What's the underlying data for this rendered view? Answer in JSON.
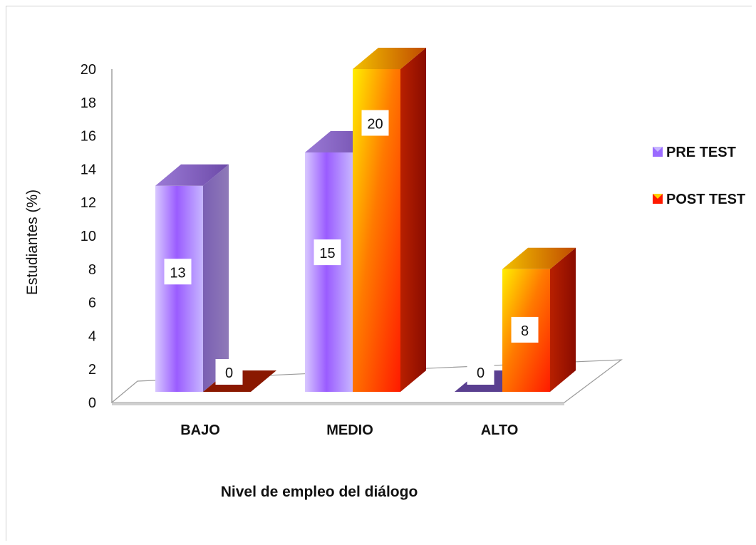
{
  "chart_data": {
    "type": "bar",
    "categories": [
      "BAJO",
      "MEDIO",
      "ALTO"
    ],
    "series": [
      {
        "name": "PRE TEST",
        "values": [
          13,
          15,
          0
        ],
        "color": "#9b6bff"
      },
      {
        "name": "POST TEST",
        "values": [
          0,
          20,
          8
        ],
        "color": "#ff6a00"
      }
    ],
    "xlabel": "Nivel de empleo del diálogo",
    "ylabel": "Estudiantes (%)",
    "ylim": [
      0,
      20
    ],
    "yticks": [
      0,
      2,
      4,
      6,
      8,
      10,
      12,
      14,
      16,
      18,
      20
    ],
    "legend_position": "right",
    "grid": false,
    "style": "3d-column"
  }
}
